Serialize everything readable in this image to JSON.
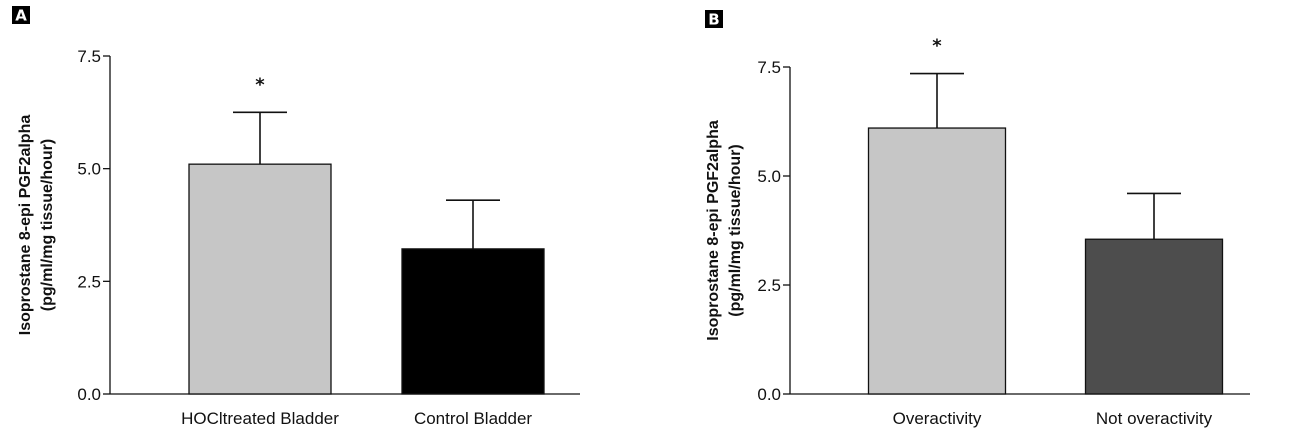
{
  "chart_data": [
    {
      "type": "bar",
      "panel_label": "A",
      "categories": [
        "HOCltreated Bladder",
        "Control Bladder"
      ],
      "values": [
        5.1,
        3.22
      ],
      "errors": [
        1.15,
        1.08
      ],
      "colors": [
        "#c6c6c6",
        "#000000"
      ],
      "significance": [
        "*",
        ""
      ],
      "ylabel": [
        "Isoprostane 8-epi PGF2alpha",
        "(pg/ml/mg tissue/hour)"
      ],
      "ylim": [
        0,
        7.5
      ],
      "yticks": [
        "0.0",
        "2.5",
        "5.0",
        "7.5"
      ],
      "ytick_values": [
        0,
        2.5,
        5.0,
        7.5
      ]
    },
    {
      "type": "bar",
      "panel_label": "B",
      "categories": [
        "Overactivity",
        "Not overactivity"
      ],
      "values": [
        6.1,
        3.55
      ],
      "errors": [
        1.25,
        1.05
      ],
      "colors": [
        "#c6c6c6",
        "#4d4d4d"
      ],
      "significance": [
        "*",
        ""
      ],
      "ylabel": [
        "Isoprostane 8-epi PGF2alpha",
        "(pg/ml/mg tissue/hour)"
      ],
      "ylim": [
        0,
        7.5
      ],
      "yticks": [
        "0.0",
        "2.5",
        "5.0",
        "7.5"
      ],
      "ytick_values": [
        0,
        2.5,
        5.0,
        7.5
      ]
    }
  ]
}
